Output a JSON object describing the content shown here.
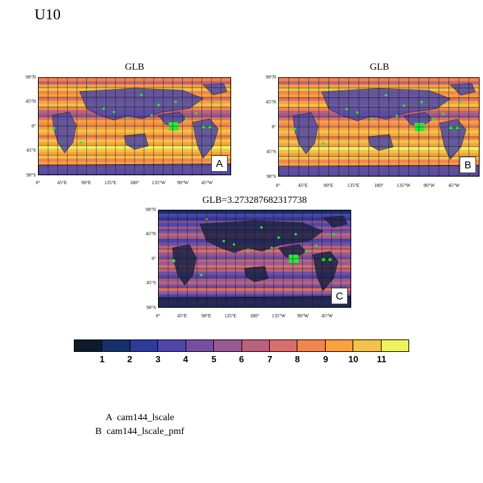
{
  "title": "U10",
  "panels": [
    {
      "title": "GLB",
      "tag": "A"
    },
    {
      "title": "GLB",
      "tag": "B"
    },
    {
      "title": "GLB=3.273287682317738",
      "tag": "C"
    }
  ],
  "lat_labels": [
    "90°N",
    "45°N",
    "0°",
    "45°S",
    "90°S"
  ],
  "lon_labels": [
    "0°",
    "45°E",
    "90°E",
    "135°E",
    "180°",
    "135°W",
    "90°W",
    "45°W"
  ],
  "colorbar": {
    "colors": [
      "#0d1b2a",
      "#17306a",
      "#2f3a9b",
      "#4f46a8",
      "#74509f",
      "#985a92",
      "#b9627e",
      "#d86f6b",
      "#f08550",
      "#f9a03f",
      "#f3c24a",
      "#eef35b"
    ],
    "labels": [
      "1",
      "2",
      "3",
      "4",
      "5",
      "6",
      "7",
      "8",
      "9",
      "10",
      "11"
    ]
  },
  "legend": [
    "A  cam144_lscale",
    "B  cam144_lscale_pmf"
  ]
}
